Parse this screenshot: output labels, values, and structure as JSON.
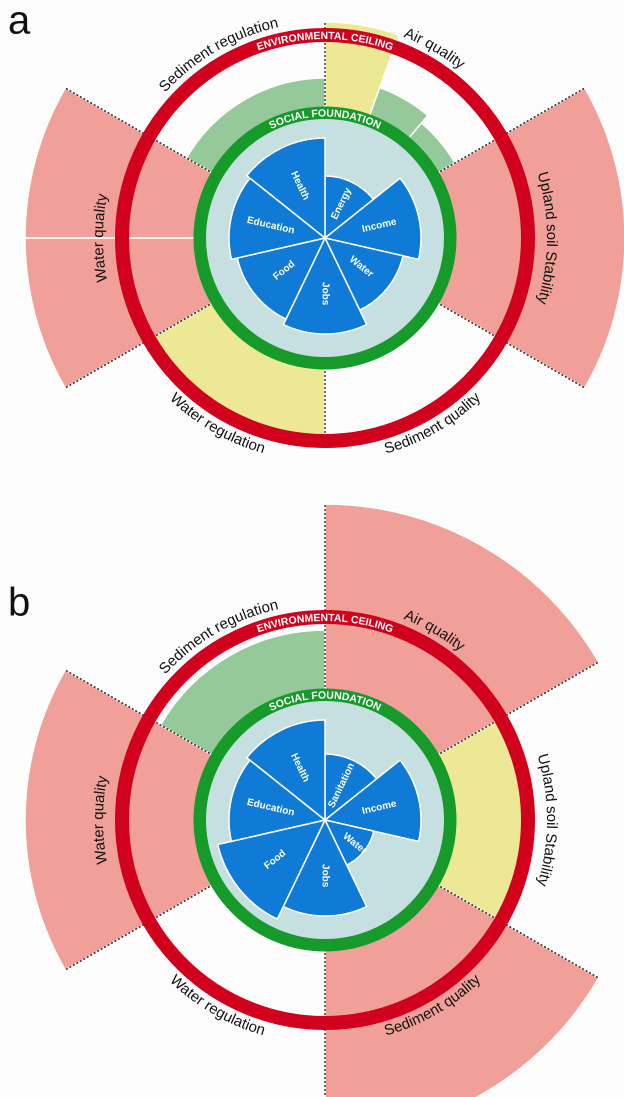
{
  "chart_data": [
    {
      "type": "doughnut",
      "panel": "a",
      "ceiling_label": "ENVIRONMENTAL CEILING",
      "foundation_label": "SOCIAL FOUNDATION",
      "environmental": [
        {
          "name": "Air quality",
          "values": [
            108,
            80,
            75
          ],
          "colors": [
            "#ede896",
            "#95c99a",
            "#95c99a"
          ]
        },
        {
          "name": "Upland soil Stability",
          "values": [
            150
          ],
          "colors": [
            "#f0a098"
          ]
        },
        {
          "name": "Sediment quality",
          "values": [
            0
          ],
          "colors": [
            "#f0a098"
          ]
        },
        {
          "name": "Water regulation",
          "values": [
            100
          ],
          "colors": [
            "#ede896"
          ]
        },
        {
          "name": "Water quality",
          "values": [
            150,
            150
          ],
          "colors": [
            "#f0a098",
            "#f0a098"
          ]
        },
        {
          "name": "Sediment regulation",
          "values": [
            80
          ],
          "colors": [
            "#95c99a"
          ]
        }
      ],
      "social": {
        "categories": [
          "Energy",
          "Income",
          "Water",
          "Jobs",
          "Food",
          "Education",
          "Health"
        ],
        "values": [
          31,
          48,
          40,
          48,
          45,
          48,
          50
        ],
        "color": "#0f7bd6"
      }
    },
    {
      "type": "doughnut",
      "panel": "b",
      "ceiling_label": "ENVIRONMENTAL CEILING",
      "foundation_label": "SOCIAL FOUNDATION",
      "environmental": [
        {
          "name": "Air quality",
          "values": [
            158
          ],
          "colors": [
            "#f0a098"
          ]
        },
        {
          "name": "Upland soil Stability",
          "values": [
            105
          ],
          "colors": [
            "#ede896"
          ]
        },
        {
          "name": "Sediment quality",
          "values": [
            158
          ],
          "colors": [
            "#f0a098"
          ]
        },
        {
          "name": "Water regulation",
          "values": [
            0
          ],
          "colors": [
            "#f0a098"
          ]
        },
        {
          "name": "Water quality",
          "values": [
            150
          ],
          "colors": [
            "#f0a098"
          ]
        },
        {
          "name": "Sediment regulation",
          "values": [
            95
          ],
          "colors": [
            "#95c99a"
          ]
        }
      ],
      "social": {
        "categories": [
          "Sanitation",
          "Income",
          "Water",
          "Jobs",
          "Food",
          "Education",
          "Health"
        ],
        "values": [
          33,
          48,
          25,
          48,
          55,
          48,
          50
        ],
        "color": "#0f7bd6"
      }
    }
  ]
}
